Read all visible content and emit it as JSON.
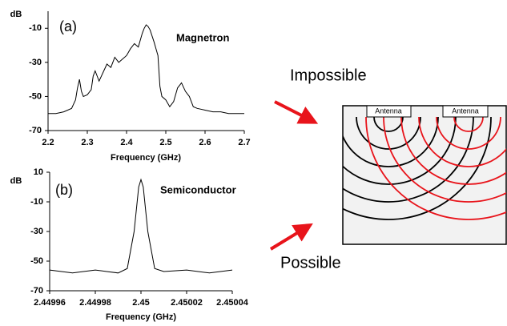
{
  "chart_data": [
    {
      "type": "line",
      "ylabel": "dB",
      "panel": "(a)",
      "annotation": "Magnetron",
      "xlabel": "Frequency (GHz)",
      "color": "#000000",
      "x": [
        2.2,
        2.22,
        2.24,
        2.26,
        2.27,
        2.275,
        2.28,
        2.285,
        2.29,
        2.3,
        2.31,
        2.315,
        2.32,
        2.33,
        2.34,
        2.35,
        2.36,
        2.37,
        2.38,
        2.39,
        2.4,
        2.41,
        2.42,
        2.43,
        2.44,
        2.445,
        2.45,
        2.455,
        2.46,
        2.47,
        2.475,
        2.48,
        2.485,
        2.49,
        2.5,
        2.51,
        2.52,
        2.53,
        2.54,
        2.55,
        2.56,
        2.57,
        2.58,
        2.6,
        2.62,
        2.64,
        2.66,
        2.68,
        2.7
      ],
      "values": [
        -60,
        -60,
        -59,
        -57,
        -52,
        -45,
        -40,
        -47,
        -50,
        -49,
        -46,
        -38,
        -35,
        -41,
        -36,
        -31,
        -33,
        -27,
        -30,
        -28,
        -26,
        -22,
        -19,
        -21,
        -13,
        -10,
        -8,
        -9,
        -11,
        -18,
        -22,
        -26,
        -44,
        -50,
        -52,
        -56,
        -53,
        -45,
        -42,
        -47,
        -50,
        -56,
        -57,
        -58,
        -59,
        -59,
        -60,
        -60,
        -60
      ],
      "xlim": [
        2.2,
        2.7
      ],
      "ylim": [
        -70,
        0
      ],
      "xticks": [
        2.2,
        2.3,
        2.4,
        2.5,
        2.6,
        2.7
      ],
      "yticks": [
        -10,
        -30,
        -50,
        -70
      ]
    },
    {
      "type": "line",
      "ylabel": "dB",
      "panel": "(b)",
      "annotation": "Semiconductor",
      "xlabel": "Frequency (GHz)",
      "color": "#000000",
      "x": [
        2.44996,
        2.44997,
        2.44998,
        2.449985,
        2.44999,
        2.449994,
        2.449997,
        2.449999,
        2.45,
        2.450001,
        2.450003,
        2.450006,
        2.45001,
        2.45002,
        2.45003,
        2.45004
      ],
      "values": [
        -56,
        -58,
        -56,
        -57,
        -58,
        -55,
        -30,
        0,
        5,
        0,
        -30,
        -55,
        -57,
        -56,
        -58,
        -56
      ],
      "xlim": [
        2.44996,
        2.45004
      ],
      "ylim": [
        -70,
        10
      ],
      "xticks": [
        2.44996,
        2.44998,
        2.45,
        2.45002,
        2.45004
      ],
      "yticks": [
        10,
        -10,
        -30,
        -50,
        -70
      ]
    }
  ],
  "diagram": {
    "top_label": "Impossible",
    "bottom_label": "Possible",
    "antennas": [
      "Antenna",
      "Antenna"
    ]
  }
}
